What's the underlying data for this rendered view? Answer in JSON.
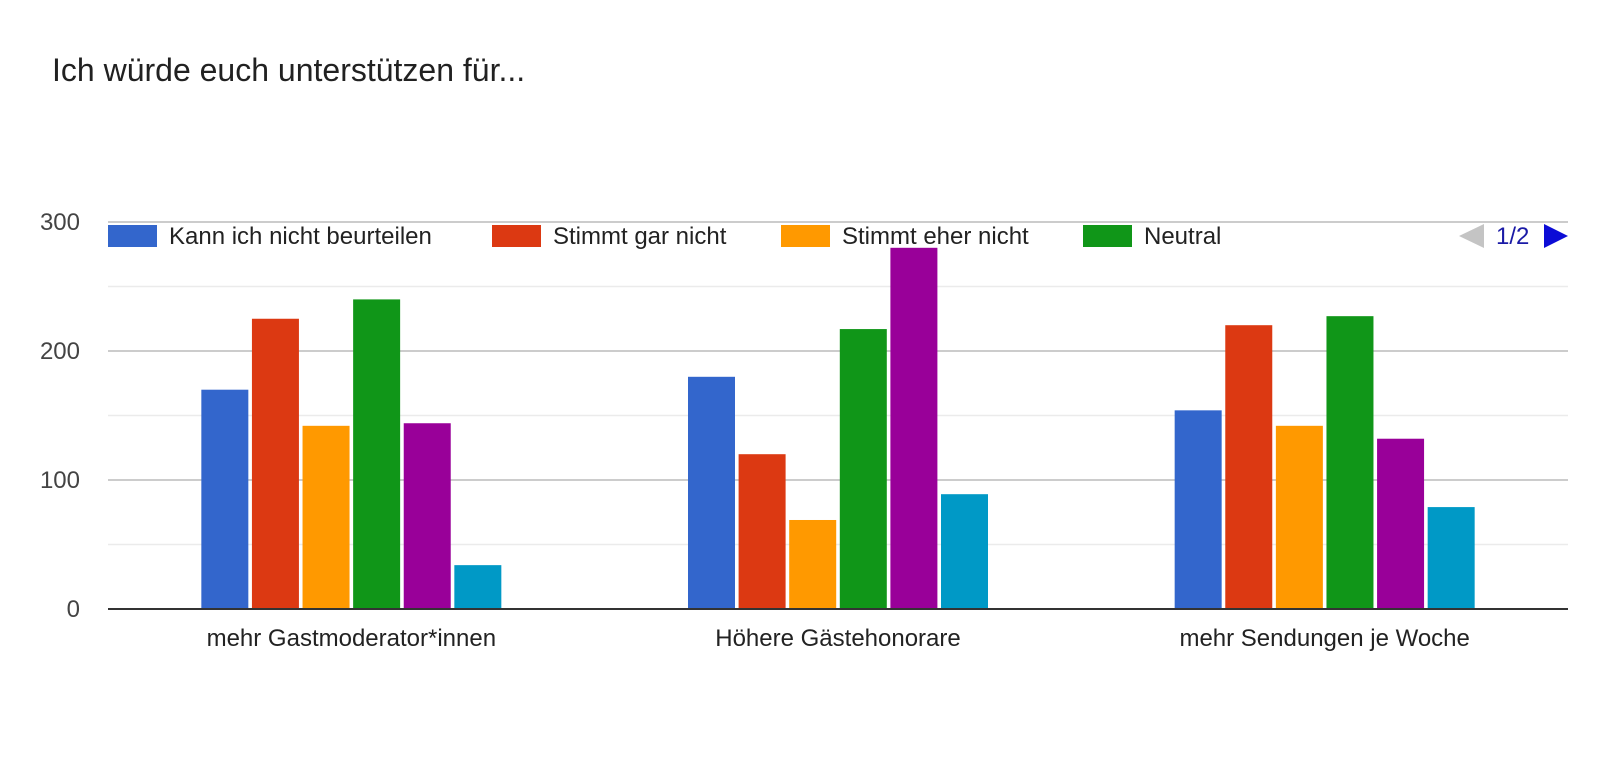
{
  "title": "Ich würde euch unterstützen für...",
  "legend": {
    "page_text": "1/2"
  },
  "colors": {
    "grid_major": "#cccccc",
    "grid_minor": "#ebebeb",
    "axis": "#333333",
    "pager_disabled": "#c4c4c4",
    "pager_active": "#0c0cd6"
  },
  "chart_data": {
    "type": "bar",
    "categories": [
      "mehr Gastmoderator*innen",
      "Höhere Gästehonorare",
      "mehr Sendungen je Woche"
    ],
    "ylim": [
      0,
      300
    ],
    "yticks": [
      0,
      100,
      200,
      300
    ],
    "grid": true,
    "legend_position": "top",
    "series": [
      {
        "name": "Kann ich nicht beurteilen",
        "color": "#3366cc",
        "values": [
          170,
          180,
          154
        ]
      },
      {
        "name": "Stimmt gar nicht",
        "color": "#dc3912",
        "values": [
          225,
          120,
          220
        ]
      },
      {
        "name": "Stimmt eher nicht",
        "color": "#ff9900",
        "values": [
          142,
          69,
          142
        ]
      },
      {
        "name": "Neutral",
        "color": "#109618",
        "values": [
          240,
          217,
          227
        ]
      },
      {
        "name": "",
        "color": "#990099",
        "values": [
          144,
          280,
          132
        ]
      },
      {
        "name": "",
        "color": "#0099c6",
        "values": [
          34,
          89,
          79
        ]
      }
    ]
  }
}
